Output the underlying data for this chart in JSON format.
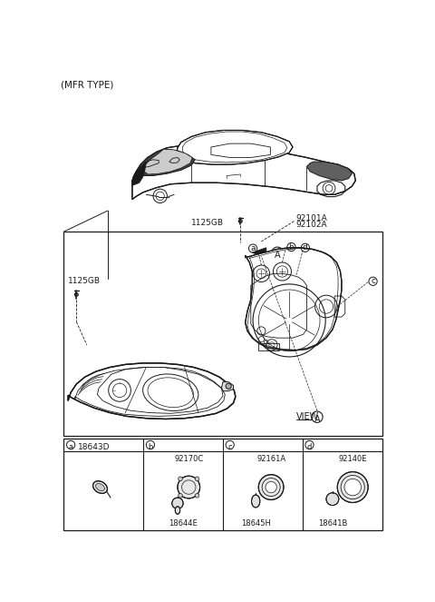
{
  "bg_color": "#ffffff",
  "line_color": "#1a1a1a",
  "fig_width": 4.8,
  "fig_height": 6.63,
  "dpi": 100,
  "labels": {
    "mfr_type": "(MFR TYPE)",
    "part_1125GB_top": "1125GB",
    "part_92101A": "92101A",
    "part_92102A": "92102A",
    "part_1125GB_left": "1125GB",
    "view_label": "VIEW",
    "view_A": "A",
    "arrow_A": "A",
    "cell_a": "a",
    "cell_b": "b",
    "cell_c": "c",
    "cell_d": "d",
    "cell_a_part": "18643D",
    "cell_b_part1": "92170C",
    "cell_b_part2": "18644E",
    "cell_c_part1": "92161A",
    "cell_c_part2": "18645H",
    "cell_d_part1": "18641B",
    "cell_d_part2": "92140E"
  }
}
